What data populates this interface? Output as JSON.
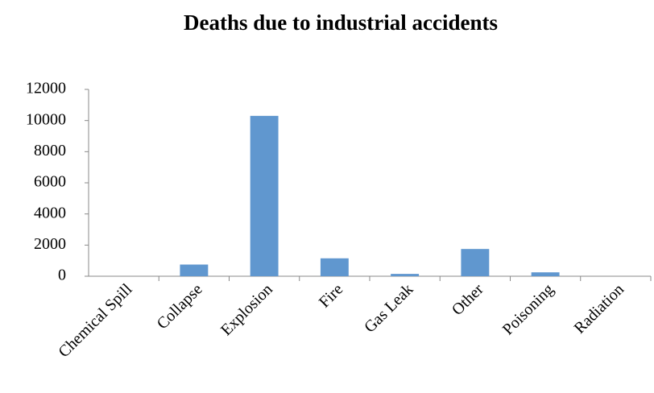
{
  "chart_data": {
    "type": "bar",
    "title": "Deaths due to industrial accidents",
    "categories": [
      "Chemical Spill",
      "Collapse",
      "Explosion",
      "Fire",
      "Gas Leak",
      "Other",
      "Poisoning",
      "Radiation"
    ],
    "values": [
      0,
      750,
      10300,
      1150,
      150,
      1750,
      250,
      0
    ],
    "color": "#6097cf",
    "ylim": [
      0,
      12000
    ],
    "yticks": [
      0,
      2000,
      4000,
      6000,
      8000,
      10000,
      12000
    ],
    "grid": false
  }
}
